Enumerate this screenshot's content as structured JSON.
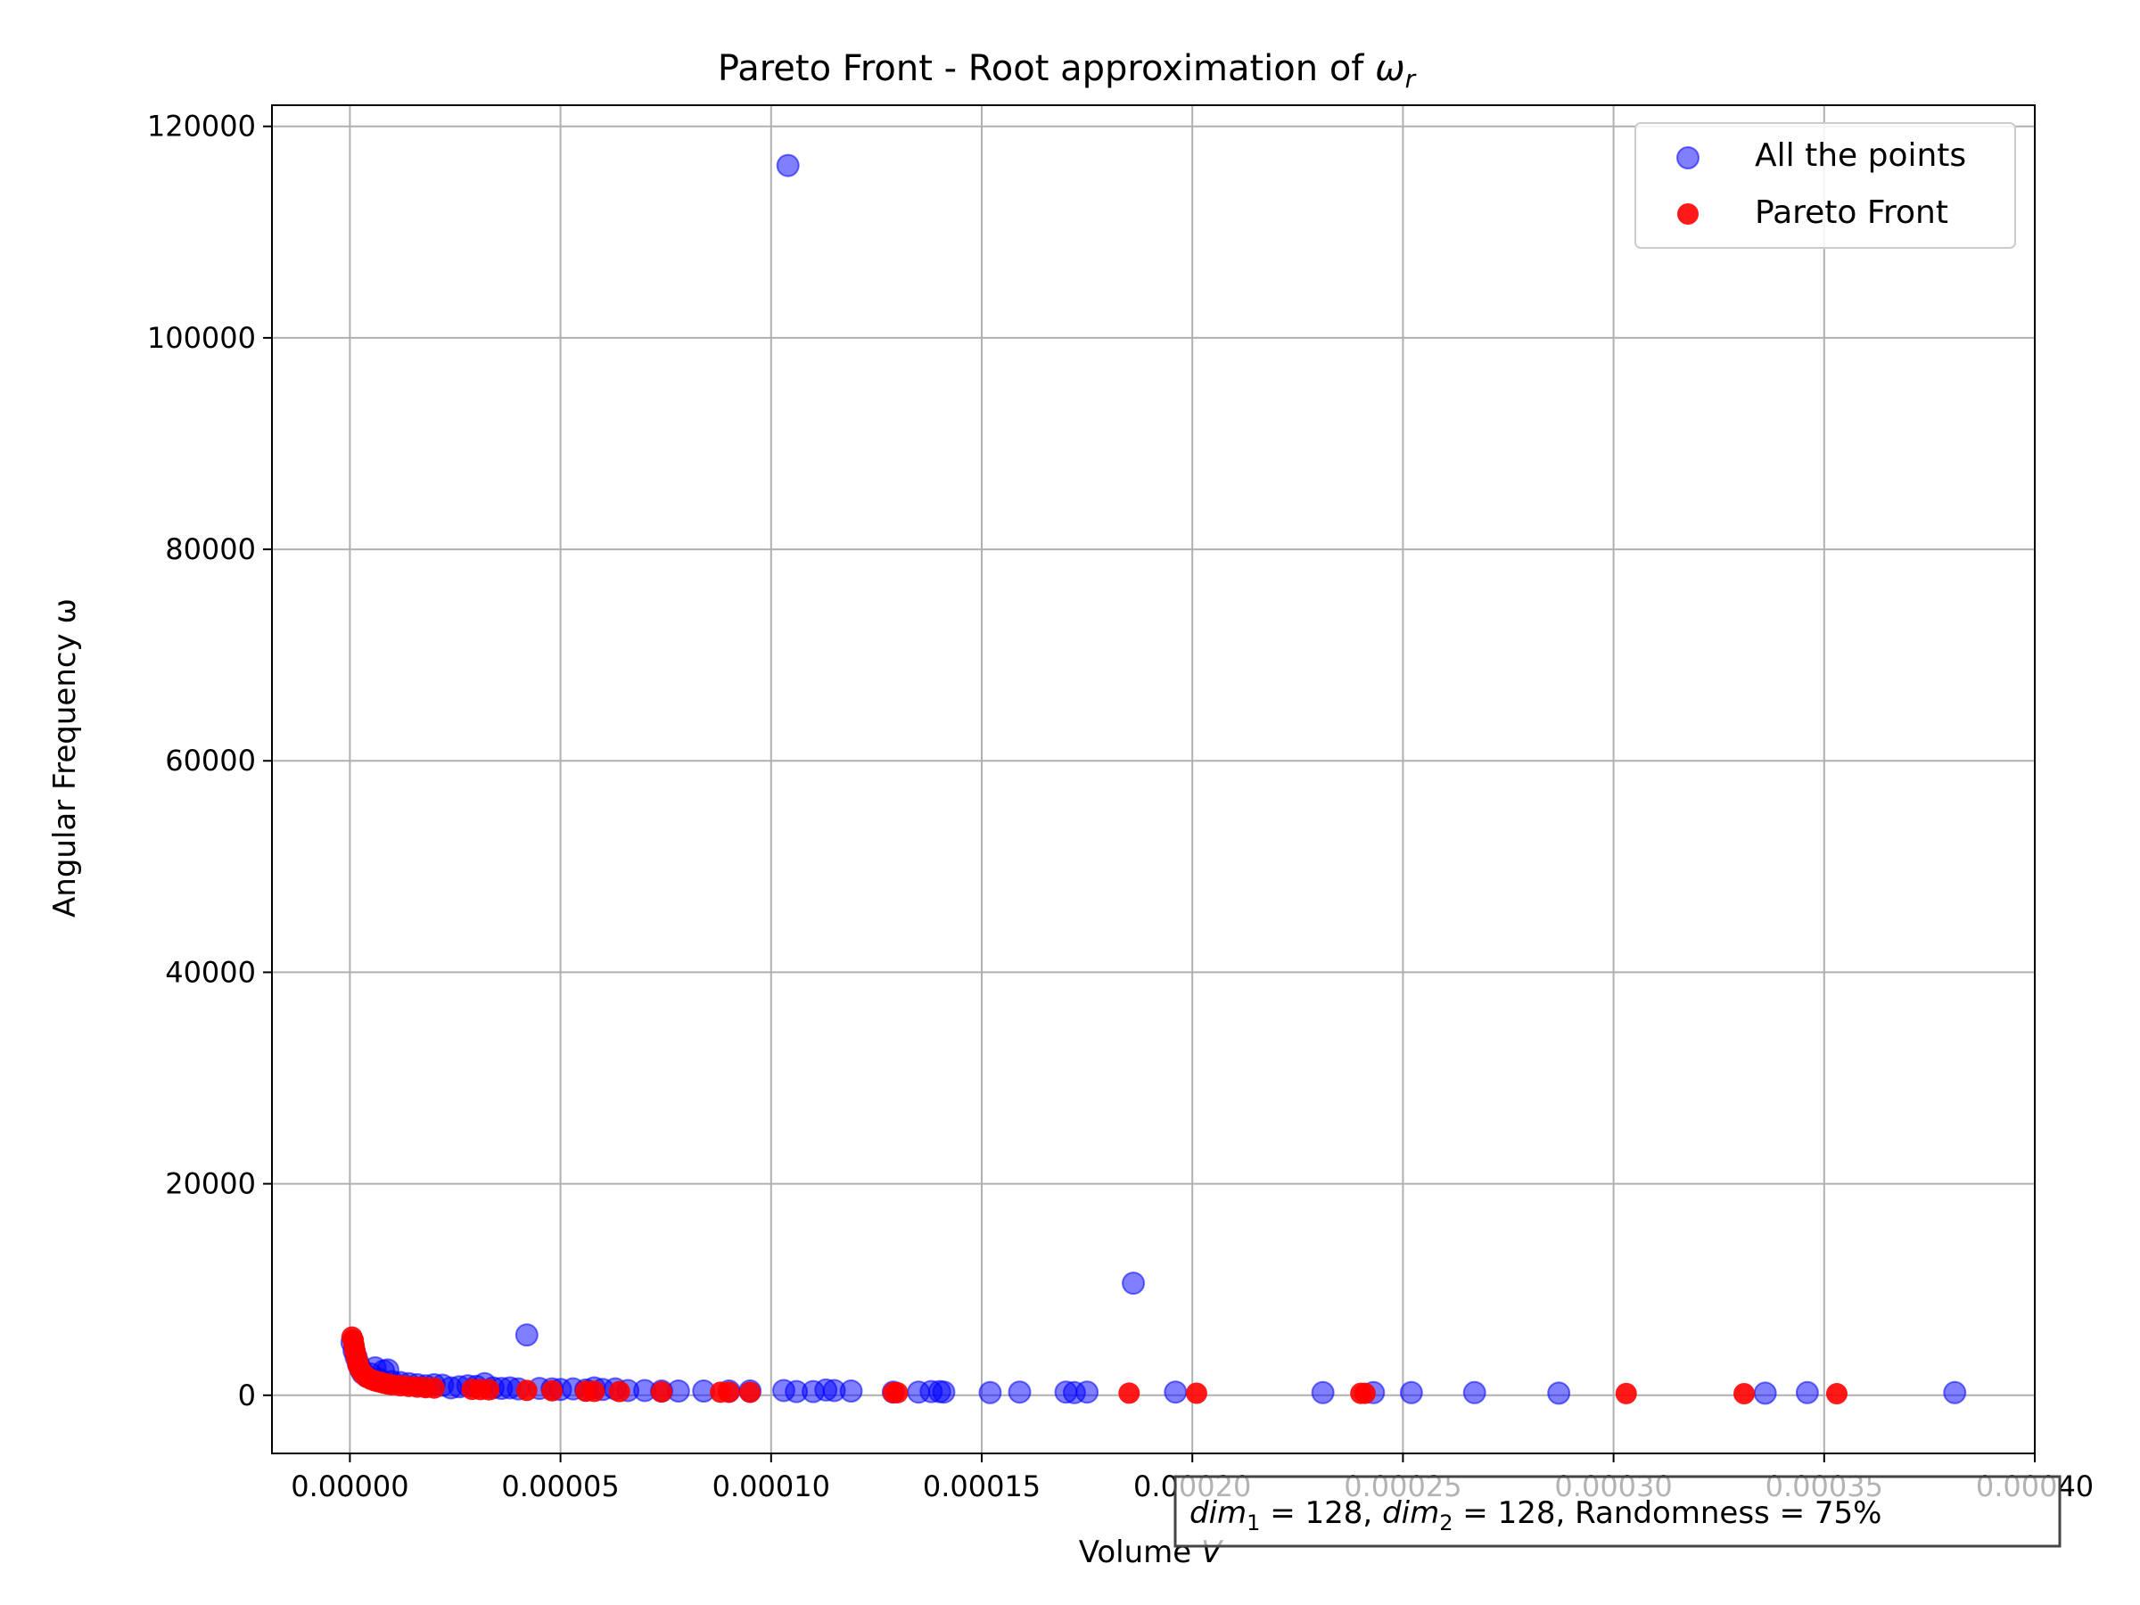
{
  "chart_data": {
    "type": "scatter",
    "title_main": "Pareto Front - Root approximation of ",
    "title_symbol": "ω",
    "title_subscript": "r",
    "xlabel_main": "Volume ",
    "xlabel_symbol": "V",
    "ylabel": "Angular Frequency ω",
    "xlim": [
      -1.85e-05,
      0.0004
    ],
    "ylim": [
      -5500,
      122000
    ],
    "xticks": [
      0.0,
      5e-05,
      0.0001,
      0.00015,
      0.0002,
      0.00025,
      0.0003,
      0.00035,
      0.0004
    ],
    "xtick_labels": [
      "0.00000",
      "0.00005",
      "0.00010",
      "0.00015",
      "0.00020",
      "0.00025",
      "0.00030",
      "0.00035",
      "0.00040"
    ],
    "yticks": [
      0,
      20000,
      40000,
      60000,
      80000,
      100000,
      120000
    ],
    "ytick_labels": [
      "0",
      "20000",
      "40000",
      "60000",
      "80000",
      "100000",
      "120000"
    ],
    "grid": true,
    "legend_position": "top-right",
    "annotation": {
      "dim1_symbol": "dim",
      "dim1_sub": "1",
      "dim1_value": " = 128, ",
      "dim2_symbol": "dim",
      "dim2_sub": "2",
      "dim2_value": " = 128, Randomness = 75%"
    },
    "series": [
      {
        "name": "All the points",
        "color": "#0000ff",
        "points": [
          [
            5e-07,
            5000
          ],
          [
            1e-06,
            4200
          ],
          [
            1.5e-06,
            3600
          ],
          [
            2e-06,
            3000
          ],
          [
            2.5e-06,
            2500
          ],
          [
            3e-06,
            2100
          ],
          [
            4e-06,
            1800
          ],
          [
            5e-06,
            2000
          ],
          [
            6e-06,
            2600
          ],
          [
            7e-06,
            1500
          ],
          [
            8e-06,
            2300
          ],
          [
            9e-06,
            2400
          ],
          [
            1e-05,
            1300
          ],
          [
            1.2e-05,
            1200
          ],
          [
            1.4e-05,
            1100
          ],
          [
            1.6e-05,
            1000
          ],
          [
            1.8e-05,
            900
          ],
          [
            2e-05,
            1000
          ],
          [
            2.2e-05,
            950
          ],
          [
            2.4e-05,
            700
          ],
          [
            2.6e-05,
            800
          ],
          [
            2.8e-05,
            900
          ],
          [
            3e-05,
            850
          ],
          [
            3.2e-05,
            1100
          ],
          [
            3.4e-05,
            700
          ],
          [
            3.6e-05,
            650
          ],
          [
            3.8e-05,
            700
          ],
          [
            4e-05,
            600
          ],
          [
            4.2e-05,
            5700
          ],
          [
            4.5e-05,
            650
          ],
          [
            4.8e-05,
            600
          ],
          [
            5e-05,
            550
          ],
          [
            5.3e-05,
            600
          ],
          [
            5.6e-05,
            500
          ],
          [
            5.8e-05,
            700
          ],
          [
            6e-05,
            550
          ],
          [
            6.3e-05,
            600
          ],
          [
            6.6e-05,
            450
          ],
          [
            7e-05,
            450
          ],
          [
            7.4e-05,
            400
          ],
          [
            7.8e-05,
            400
          ],
          [
            8.4e-05,
            400
          ],
          [
            9e-05,
            400
          ],
          [
            9.5e-05,
            400
          ],
          [
            0.000103,
            450
          ],
          [
            0.000104,
            116300
          ],
          [
            0.000106,
            350
          ],
          [
            0.00011,
            350
          ],
          [
            0.000113,
            500
          ],
          [
            0.000115,
            450
          ],
          [
            0.000119,
            400
          ],
          [
            0.000129,
            300
          ],
          [
            0.000135,
            300
          ],
          [
            0.000138,
            350
          ],
          [
            0.00014,
            350
          ],
          [
            0.000141,
            300
          ],
          [
            0.000152,
            250
          ],
          [
            0.000159,
            300
          ],
          [
            0.00017,
            300
          ],
          [
            0.000172,
            250
          ],
          [
            0.000175,
            300
          ],
          [
            0.000186,
            10600
          ],
          [
            0.000196,
            300
          ],
          [
            0.000231,
            250
          ],
          [
            0.000243,
            250
          ],
          [
            0.000252,
            250
          ],
          [
            0.000267,
            250
          ],
          [
            0.000287,
            200
          ],
          [
            0.000336,
            200
          ],
          [
            0.000346,
            250
          ],
          [
            0.000381,
            250
          ]
        ]
      },
      {
        "name": "Pareto Front",
        "color": "#ff0000",
        "points": [
          [
            5e-07,
            5500
          ],
          [
            8e-07,
            5200
          ],
          [
            1e-06,
            4700
          ],
          [
            1.2e-06,
            4200
          ],
          [
            1.5e-06,
            3700
          ],
          [
            1.8e-06,
            3200
          ],
          [
            2e-06,
            2800
          ],
          [
            2.5e-06,
            2400
          ],
          [
            3e-06,
            2100
          ],
          [
            3.5e-06,
            1900
          ],
          [
            4e-06,
            1700
          ],
          [
            5e-06,
            1500
          ],
          [
            6e-06,
            1350
          ],
          [
            7e-06,
            1250
          ],
          [
            8e-06,
            1150
          ],
          [
            9e-06,
            1050
          ],
          [
            1e-05,
            980
          ],
          [
            1.2e-05,
            900
          ],
          [
            1.4e-05,
            830
          ],
          [
            1.6e-05,
            770
          ],
          [
            1.8e-05,
            720
          ],
          [
            2e-05,
            680
          ],
          [
            2.9e-05,
            560
          ],
          [
            3.1e-05,
            540
          ],
          [
            3.3e-05,
            520
          ],
          [
            4.2e-05,
            460
          ],
          [
            4.8e-05,
            420
          ],
          [
            5.6e-05,
            380
          ],
          [
            5.8e-05,
            370
          ],
          [
            6.4e-05,
            350
          ],
          [
            7.4e-05,
            320
          ],
          [
            8.8e-05,
            290
          ],
          [
            9e-05,
            285
          ],
          [
            9.5e-05,
            280
          ],
          [
            0.000129,
            240
          ],
          [
            0.00013,
            238
          ],
          [
            0.000185,
            200
          ],
          [
            0.000201,
            190
          ],
          [
            0.00024,
            180
          ],
          [
            0.000241,
            178
          ],
          [
            0.000303,
            160
          ],
          [
            0.000331,
            150
          ],
          [
            0.000353,
            145
          ]
        ]
      }
    ]
  }
}
